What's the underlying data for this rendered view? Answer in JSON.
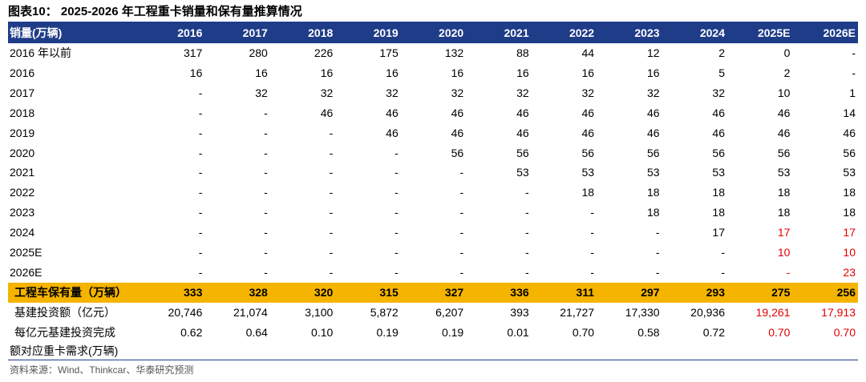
{
  "title": "图表10：  2025-2026 年工程重卡销量和保有量推算情况",
  "header": [
    "销量(万辆)",
    "2016",
    "2017",
    "2018",
    "2019",
    "2020",
    "2021",
    "2022",
    "2023",
    "2024",
    "2025E",
    "2026E"
  ],
  "rows": [
    {
      "label": "2016 年以前",
      "cells": [
        "317",
        "280",
        "226",
        "175",
        "132",
        "88",
        "44",
        "12",
        "2",
        "0",
        "-"
      ]
    },
    {
      "label": "2016",
      "cells": [
        "16",
        "16",
        "16",
        "16",
        "16",
        "16",
        "16",
        "16",
        "5",
        "2",
        "-"
      ]
    },
    {
      "label": "2017",
      "cells": [
        "-",
        "32",
        "32",
        "32",
        "32",
        "32",
        "32",
        "32",
        "32",
        "10",
        "1"
      ]
    },
    {
      "label": "2018",
      "cells": [
        "-",
        "-",
        "46",
        "46",
        "46",
        "46",
        "46",
        "46",
        "46",
        "46",
        "14"
      ]
    },
    {
      "label": "2019",
      "cells": [
        "-",
        "-",
        "-",
        "46",
        "46",
        "46",
        "46",
        "46",
        "46",
        "46",
        "46"
      ]
    },
    {
      "label": "2020",
      "cells": [
        "-",
        "-",
        "-",
        "-",
        "56",
        "56",
        "56",
        "56",
        "56",
        "56",
        "56"
      ]
    },
    {
      "label": "2021",
      "cells": [
        "-",
        "-",
        "-",
        "-",
        "-",
        "53",
        "53",
        "53",
        "53",
        "53",
        "53"
      ]
    },
    {
      "label": "2022",
      "cells": [
        "-",
        "-",
        "-",
        "-",
        "-",
        "-",
        "18",
        "18",
        "18",
        "18",
        "18"
      ]
    },
    {
      "label": "2023",
      "cells": [
        "-",
        "-",
        "-",
        "-",
        "-",
        "-",
        "-",
        "18",
        "18",
        "18",
        "18"
      ]
    },
    {
      "label": "2024",
      "cells": [
        "-",
        "-",
        "-",
        "-",
        "-",
        "-",
        "-",
        "-",
        "17",
        "17",
        "17"
      ],
      "red_cols": [
        9,
        10
      ]
    },
    {
      "label": "2025E",
      "cells": [
        "-",
        "-",
        "-",
        "-",
        "-",
        "-",
        "-",
        "-",
        "-",
        "10",
        "10"
      ],
      "red_cols": [
        9,
        10
      ]
    },
    {
      "label": "2026E",
      "cells": [
        "-",
        "-",
        "-",
        "-",
        "-",
        "-",
        "-",
        "-",
        "-",
        "-",
        "23"
      ],
      "red_cols": [
        9,
        10
      ]
    }
  ],
  "total_row": {
    "label": "工程车保有量（万辆）",
    "cells": [
      "333",
      "328",
      "320",
      "315",
      "327",
      "336",
      "311",
      "297",
      "293",
      "275",
      "256"
    ]
  },
  "extra_rows": [
    {
      "label": "基建投资额（亿元）",
      "cells": [
        "20,746",
        "21,074",
        "3,100",
        "5,872",
        "6,207",
        "393",
        "21,727",
        "17,330",
        "20,936",
        "19,261",
        "17,913"
      ],
      "red_cols": [
        9,
        10
      ]
    },
    {
      "label": "每亿元基建投资完成",
      "cells": [
        "0.62",
        "0.64",
        "0.10",
        "0.19",
        "0.19",
        "0.01",
        "0.70",
        "0.58",
        "0.72",
        "0.70",
        "0.70"
      ],
      "red_cols": [
        9,
        10
      ]
    }
  ],
  "note": "额对应重卡需求(万辆)",
  "source": "资料来源：Wind、Thinkcar、华泰研究预测",
  "colors": {
    "header_bg": "#1f3c88",
    "total_bg": "#f4b400",
    "forecast_text": "#e00000"
  }
}
